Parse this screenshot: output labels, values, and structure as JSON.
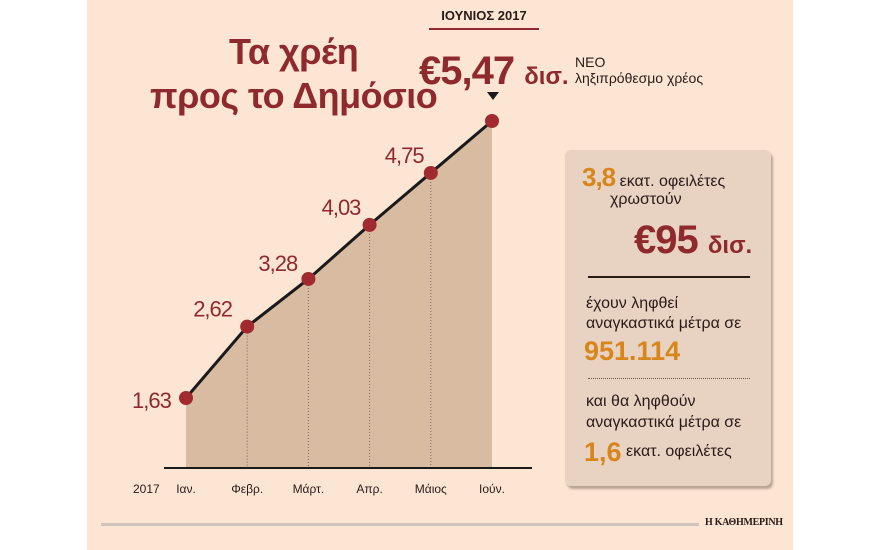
{
  "title": {
    "line1": "Τα χρέη",
    "line2": "προς το Δημόσιο"
  },
  "highlight": {
    "month": "ΙΟΥΝΙΟΣ 2017",
    "value": "€5,47",
    "unit": "δισ.",
    "note_line1": "ΝΕΟ",
    "note_line2": "ληξιπρόθεσμο χρέος"
  },
  "sidebox": {
    "debtors_num": "3,8",
    "debtors_text": "εκατ. οφειλέτες",
    "owe_text": "χρωστούν",
    "owe_value": "€95",
    "owe_unit": "δισ.",
    "measures_line1": "έχουν ληφθεί",
    "measures_line2": "αναγκαστικά μέτρα σε",
    "measures_num": "951.114",
    "future_line1": "και θα ληφθούν",
    "future_line2": "αναγκαστικά μέτρα σε",
    "future_num": "1,6",
    "future_rest": "εκατ. οφειλέτες"
  },
  "footer": {
    "brand": "Η ΚΑΘΗΜΕΡΙΝΗ"
  },
  "chart_data": {
    "type": "area",
    "title": "Τα χρέη προς το Δημόσιο",
    "year_label": "2017",
    "categories": [
      "Ιαν.",
      "Φεβρ.",
      "Μάρτ.",
      "Απρ.",
      "Μάιος",
      "Ιούν."
    ],
    "labels": [
      "1,63",
      "2,62",
      "3,28",
      "4,03",
      "4,75",
      ""
    ],
    "values": [
      1.63,
      2.62,
      3.28,
      4.03,
      4.75,
      5.47
    ],
    "ylabel": "δισ. €",
    "xlabel": "",
    "grid": false,
    "colors": {
      "line": "#1a1a1a",
      "marker": "#a02a30",
      "fill": "#d9bba1",
      "label": "#8e2a2e"
    }
  }
}
